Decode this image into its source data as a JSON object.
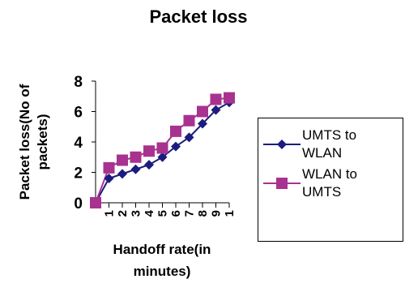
{
  "chart_data": {
    "type": "line",
    "title": "Packet loss",
    "ylabel": [
      "Packet loss(No of",
      "packets)"
    ],
    "xlabel": [
      "Handoff rate(in",
      "minutes)"
    ],
    "categories": [
      null,
      "1",
      "2",
      "3",
      "4",
      "5",
      "6",
      "7",
      "8",
      "9",
      "1"
    ],
    "series": [
      {
        "name": "UMTS to WLAN",
        "color": "#1c1c7e",
        "marker": "diamond",
        "values": [
          0,
          1.6,
          1.9,
          2.2,
          2.5,
          3.0,
          3.7,
          4.3,
          5.2,
          6.1,
          6.6
        ]
      },
      {
        "name": "WLAN to UMTS",
        "color": "#a8328f",
        "marker": "square",
        "values": [
          0,
          2.3,
          2.8,
          3.0,
          3.4,
          3.6,
          4.7,
          5.4,
          6.0,
          6.8,
          6.9
        ]
      }
    ],
    "ylim": [
      0,
      8
    ],
    "yticks": [
      0,
      2,
      4,
      6,
      8
    ],
    "grid": false
  }
}
